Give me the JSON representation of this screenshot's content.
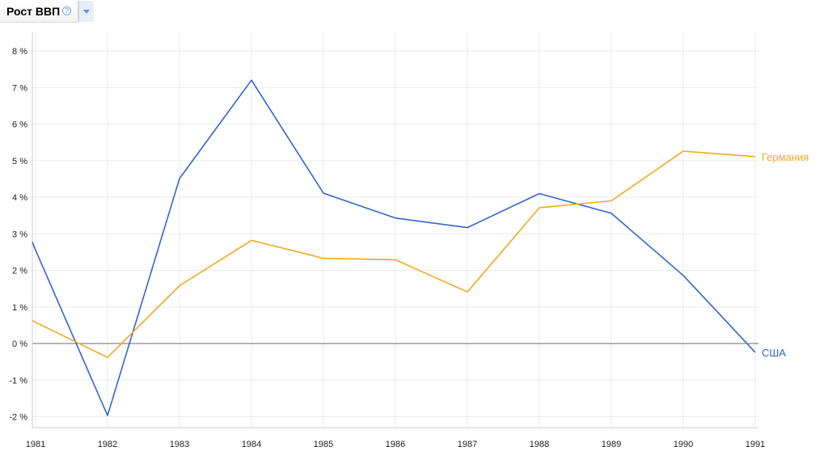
{
  "header": {
    "title": "Рост ВВП",
    "help_icon": "help-circle-icon",
    "dropdown_icon": "chevron-down-icon"
  },
  "chart_data": {
    "type": "line",
    "title": "Рост ВВП",
    "x": [
      "1981",
      "1982",
      "1983",
      "1984",
      "1985",
      "1986",
      "1987",
      "1988",
      "1989",
      "1990",
      "1991"
    ],
    "series": [
      {
        "name": "США",
        "color": "#3366cc",
        "values": [
          2.55,
          -1.97,
          4.51,
          7.2,
          4.11,
          3.43,
          3.17,
          4.1,
          3.56,
          1.86,
          -0.24
        ]
      },
      {
        "name": "Германия",
        "color": "#f5a623",
        "values": [
          0.58,
          -0.38,
          1.58,
          2.82,
          2.33,
          2.29,
          1.41,
          3.71,
          3.9,
          5.26,
          5.11
        ]
      }
    ],
    "ylim": [
      -2.3,
      8.4
    ],
    "yticks": [
      -2,
      -1,
      0,
      1,
      2,
      3,
      4,
      5,
      6,
      7,
      8
    ],
    "ytick_labels": [
      "-2 %",
      "-1 %",
      "0 %",
      "1 %",
      "2 %",
      "3 %",
      "4 %",
      "5 %",
      "6 %",
      "7 %",
      "8 %"
    ],
    "grid": true,
    "legend": "right end of lines"
  }
}
